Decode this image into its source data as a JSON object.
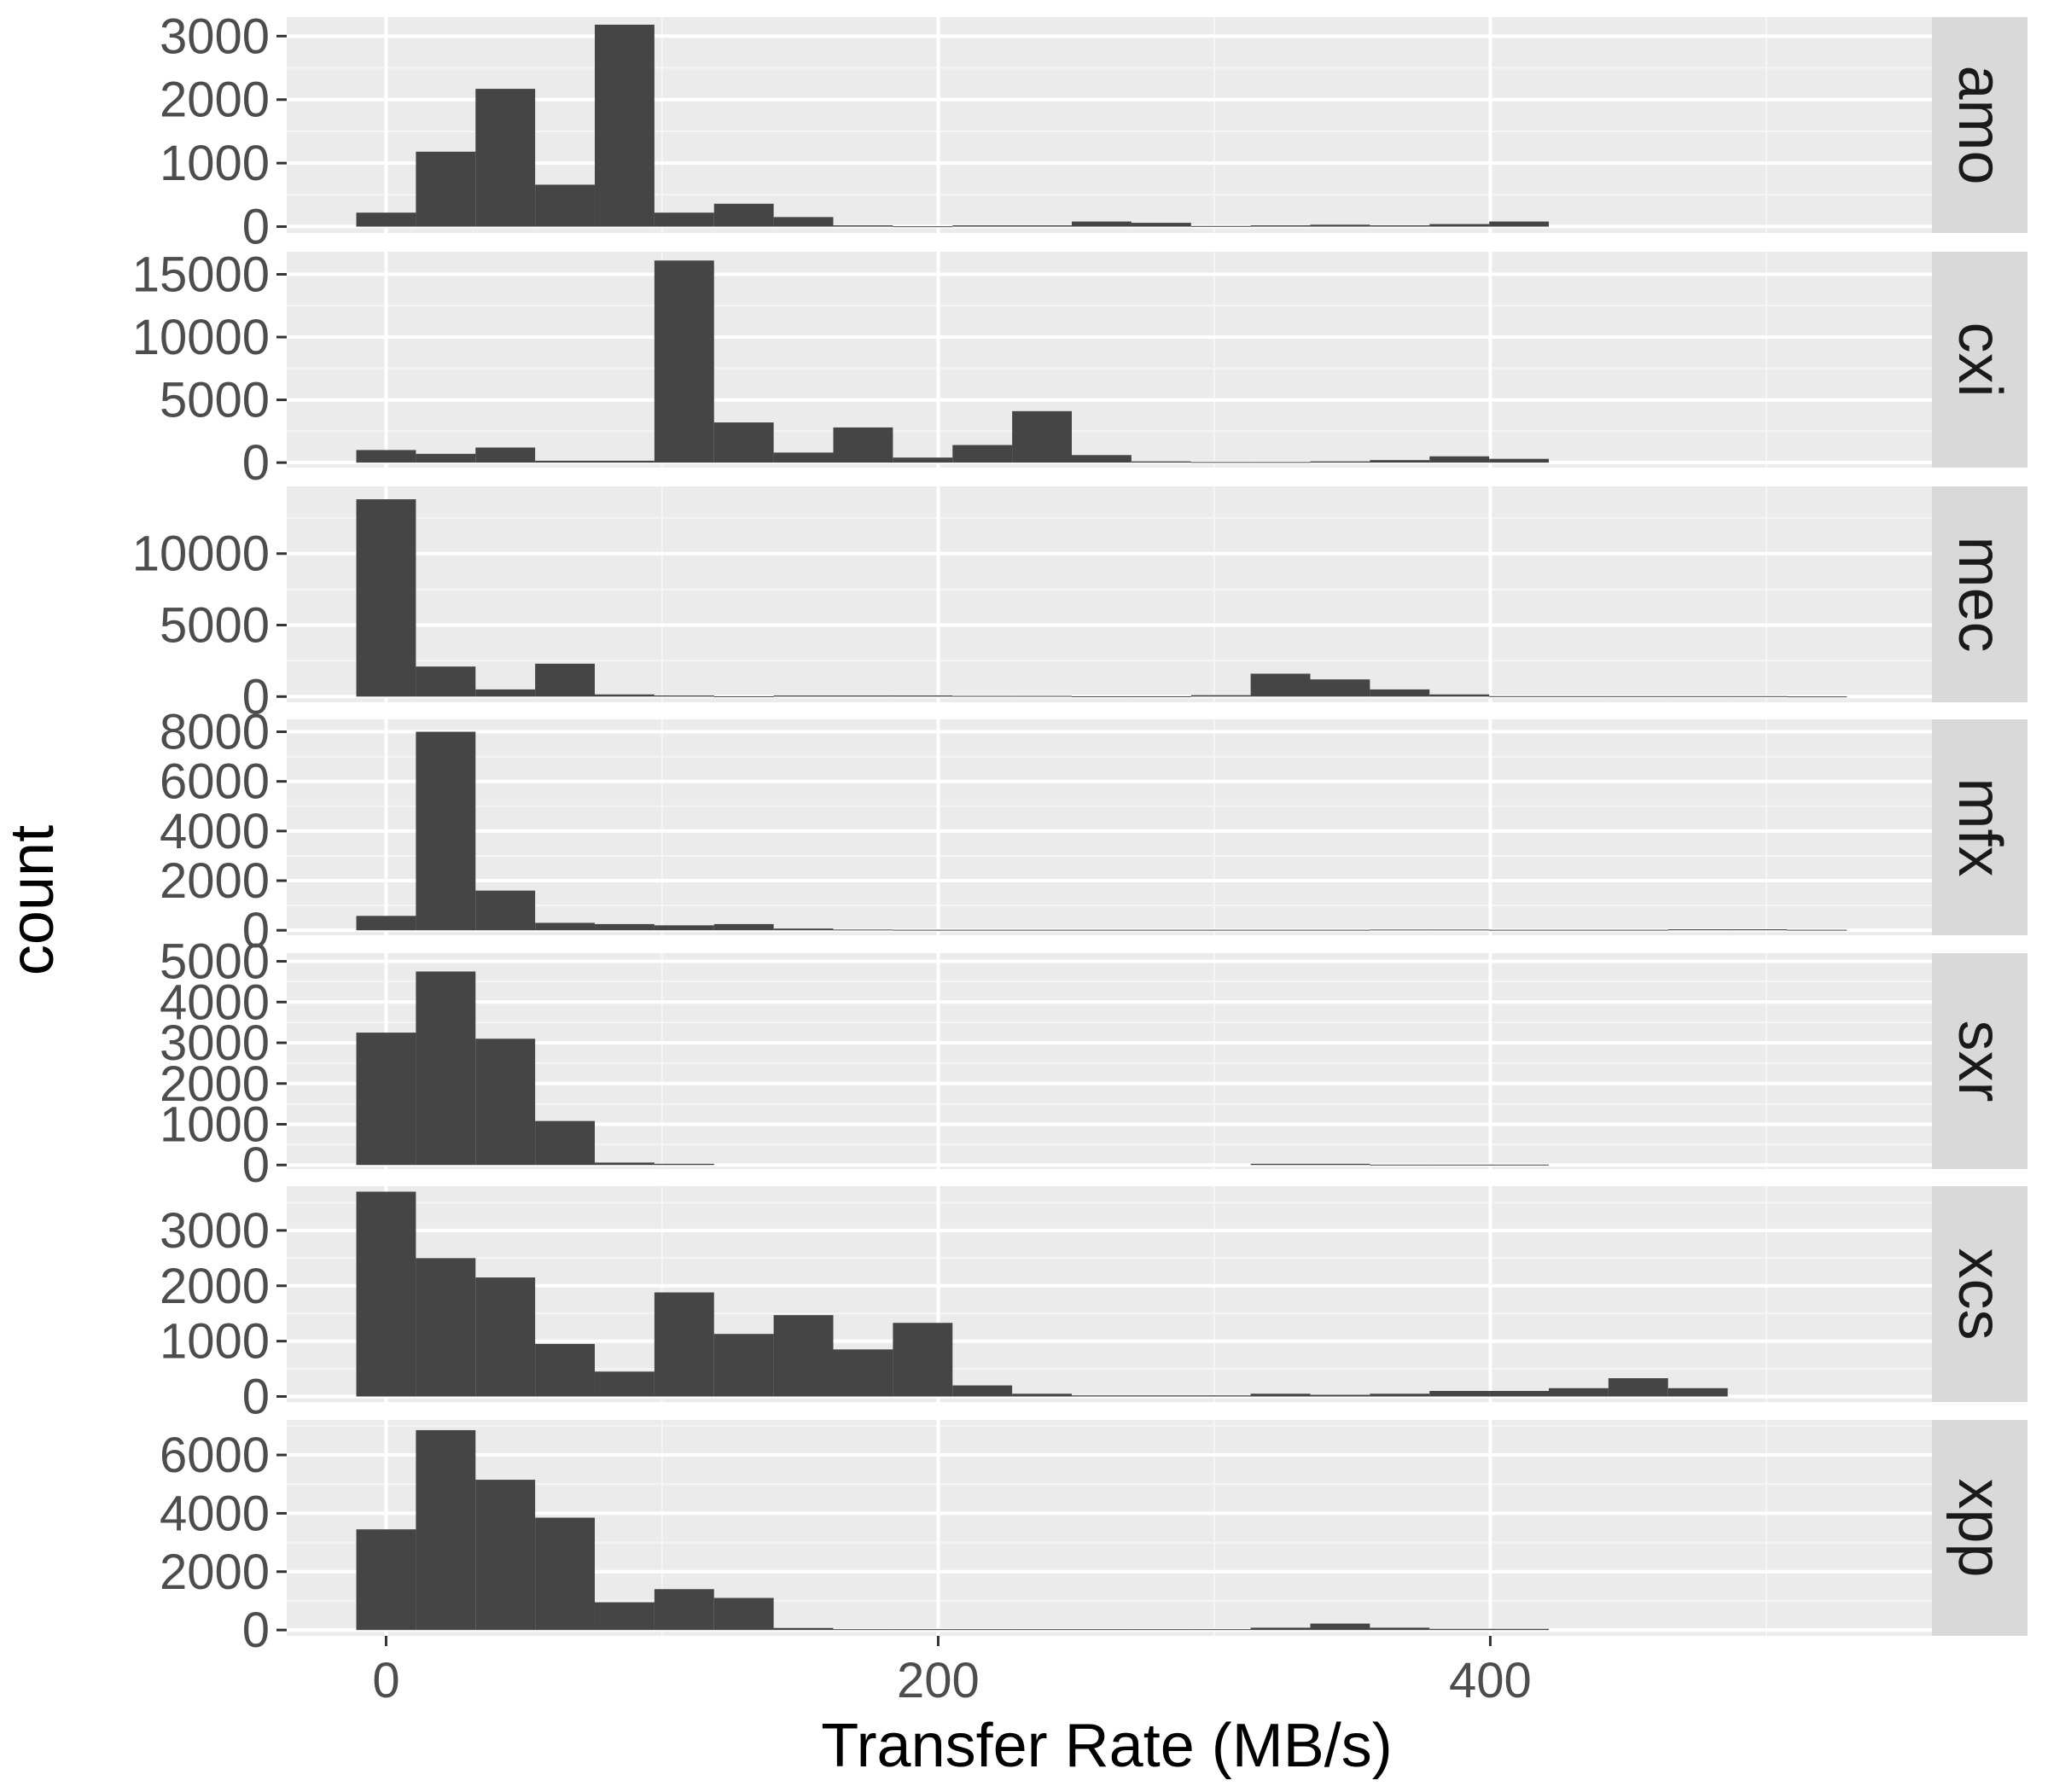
{
  "chart_data": {
    "type": "bar",
    "subtype": "faceted-histogram",
    "xlabel": "Transfer Rate (MB/s)",
    "ylabel": "count",
    "xlim": [
      -36,
      560
    ],
    "x_ticks": [
      0,
      200,
      400
    ],
    "bin_width": 21.6,
    "bin_centers": [
      0,
      21.6,
      43.2,
      64.8,
      86.4,
      108,
      129.6,
      151.2,
      172.8,
      194.4,
      216,
      237.6,
      259.2,
      280.8,
      302.4,
      324,
      345.6,
      367.2,
      388.8,
      410.4,
      432,
      453.6,
      475.2,
      496.8,
      518.4,
      540
    ],
    "grid": true,
    "facets": [
      {
        "name": "amo",
        "ylim": [
          -100,
          3300
        ],
        "y_ticks": [
          0,
          1000,
          2000,
          3000
        ],
        "values": [
          220,
          1180,
          2170,
          660,
          3180,
          220,
          360,
          150,
          20,
          5,
          20,
          20,
          80,
          60,
          10,
          20,
          30,
          20,
          40,
          80,
          0,
          0,
          0,
          0,
          0,
          0
        ]
      },
      {
        "name": "cxi",
        "ylim": [
          -400,
          16800
        ],
        "y_ticks": [
          0,
          5000,
          10000,
          15000
        ],
        "values": [
          1000,
          700,
          1200,
          150,
          150,
          16100,
          3200,
          800,
          2800,
          400,
          1400,
          4100,
          600,
          100,
          50,
          50,
          100,
          200,
          500,
          300,
          0,
          0,
          0,
          0,
          0,
          0
        ]
      },
      {
        "name": "mec",
        "ylim": [
          -400,
          14700
        ],
        "y_ticks": [
          0,
          5000,
          10000
        ],
        "values": [
          13800,
          2100,
          500,
          2300,
          150,
          80,
          20,
          80,
          80,
          80,
          50,
          50,
          20,
          20,
          100,
          1600,
          1200,
          500,
          150,
          30,
          30,
          30,
          30,
          30,
          10,
          0
        ]
      },
      {
        "name": "mfx",
        "ylim": [
          -200,
          8500
        ],
        "y_ticks": [
          0,
          2000,
          4000,
          6000,
          8000
        ],
        "values": [
          580,
          8000,
          1600,
          300,
          250,
          200,
          250,
          70,
          30,
          20,
          20,
          20,
          20,
          20,
          20,
          20,
          20,
          30,
          30,
          20,
          20,
          20,
          40,
          40,
          20,
          0
        ]
      },
      {
        "name": "sxr",
        "ylim": [
          -100,
          5200
        ],
        "y_ticks": [
          0,
          1000,
          2000,
          3000,
          4000,
          5000
        ],
        "values": [
          3250,
          4750,
          3100,
          1080,
          60,
          30,
          0,
          0,
          0,
          0,
          0,
          0,
          0,
          0,
          0,
          30,
          30,
          10,
          10,
          10,
          0,
          0,
          0,
          0,
          0,
          0
        ]
      },
      {
        "name": "xcs",
        "ylim": [
          -100,
          3800
        ],
        "y_ticks": [
          0,
          1000,
          2000,
          3000
        ],
        "values": [
          3700,
          2500,
          2150,
          950,
          450,
          1880,
          1130,
          1470,
          850,
          1330,
          200,
          50,
          20,
          20,
          20,
          50,
          30,
          50,
          100,
          100,
          150,
          330,
          150,
          0,
          0,
          0
        ]
      },
      {
        "name": "xpp",
        "ylim": [
          -200,
          7200
        ],
        "y_ticks": [
          0,
          2000,
          4000,
          6000
        ],
        "values": [
          3450,
          6850,
          5150,
          3850,
          950,
          1400,
          1100,
          70,
          30,
          30,
          30,
          30,
          30,
          30,
          30,
          80,
          220,
          80,
          40,
          40,
          0,
          0,
          0,
          0,
          0,
          0
        ]
      }
    ]
  }
}
